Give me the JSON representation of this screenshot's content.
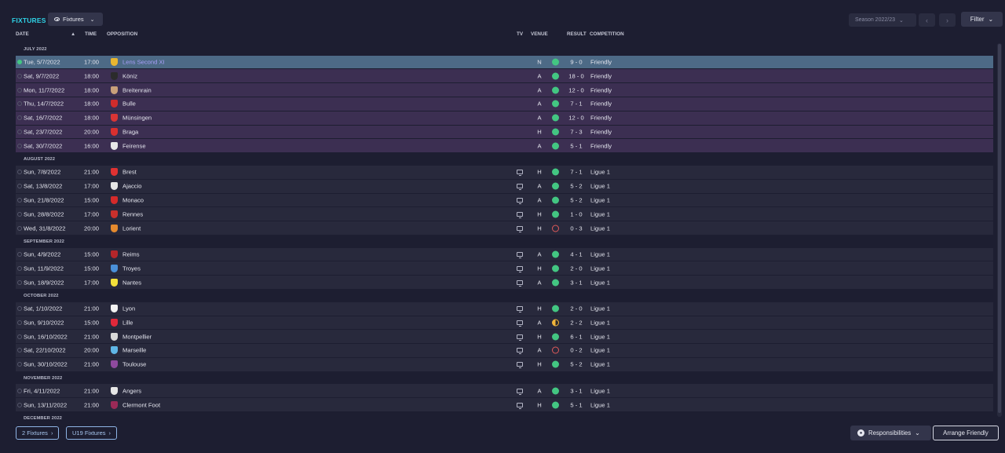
{
  "header": {
    "title": "FIXTURES",
    "view_label": "Fixtures",
    "season_label": "Season 2022/23",
    "filter_label": "Filter",
    "icons": {
      "view": "eye-icon",
      "prev": "chevron-left-icon",
      "next": "chevron-right-icon"
    }
  },
  "columns": {
    "date": "DATE",
    "time": "TIME",
    "opposition": "OPPOSITION",
    "tv": "TV",
    "venue": "VENUE",
    "result": "RESULT",
    "competition": "COMPETITION"
  },
  "months": [
    {
      "label": "JULY 2022",
      "fixtures": [
        {
          "date": "Tue, 5/7/2022",
          "time": "17:00",
          "opposition": "Lens Second XI",
          "tv": false,
          "venue": "N",
          "outcome": "W",
          "result": "9 - 0",
          "competition": "Friendly",
          "friendly": true,
          "selected": true,
          "badge_color": "#e8b630"
        },
        {
          "date": "Sat, 9/7/2022",
          "time": "18:00",
          "opposition": "Köniz",
          "tv": false,
          "venue": "A",
          "outcome": "W",
          "result": "18 - 0",
          "competition": "Friendly",
          "friendly": true,
          "badge_color": "#2b2b2b"
        },
        {
          "date": "Mon, 11/7/2022",
          "time": "18:00",
          "opposition": "Breitenrain",
          "tv": false,
          "venue": "A",
          "outcome": "W",
          "result": "12 - 0",
          "competition": "Friendly",
          "friendly": true,
          "badge_color": "#c8a07a"
        },
        {
          "date": "Thu, 14/7/2022",
          "time": "18:00",
          "opposition": "Bulle",
          "tv": false,
          "venue": "A",
          "outcome": "W",
          "result": "7 - 1",
          "competition": "Friendly",
          "friendly": true,
          "badge_color": "#d02c2c"
        },
        {
          "date": "Sat, 16/7/2022",
          "time": "18:00",
          "opposition": "Münsingen",
          "tv": false,
          "venue": "A",
          "outcome": "W",
          "result": "12 - 0",
          "competition": "Friendly",
          "friendly": true,
          "badge_color": "#d93535"
        },
        {
          "date": "Sat, 23/7/2022",
          "time": "20:00",
          "opposition": "Braga",
          "tv": false,
          "venue": "H",
          "outcome": "W",
          "result": "7 - 3",
          "competition": "Friendly",
          "friendly": true,
          "badge_color": "#d9302f"
        },
        {
          "date": "Sat, 30/7/2022",
          "time": "16:00",
          "opposition": "Feirense",
          "tv": false,
          "venue": "A",
          "outcome": "W",
          "result": "5 - 1",
          "competition": "Friendly",
          "friendly": true,
          "badge_color": "#e7e7e7"
        }
      ]
    },
    {
      "label": "AUGUST 2022",
      "fixtures": [
        {
          "date": "Sun, 7/8/2022",
          "time": "21:00",
          "opposition": "Brest",
          "tv": true,
          "venue": "H",
          "outcome": "W",
          "result": "7 - 1",
          "competition": "Ligue 1",
          "badge_color": "#e03232"
        },
        {
          "date": "Sat, 13/8/2022",
          "time": "17:00",
          "opposition": "Ajaccio",
          "tv": true,
          "venue": "A",
          "outcome": "W",
          "result": "5 - 2",
          "competition": "Ligue 1",
          "badge_color": "#e6e6e6"
        },
        {
          "date": "Sun, 21/8/2022",
          "time": "15:00",
          "opposition": "Monaco",
          "tv": true,
          "venue": "A",
          "outcome": "W",
          "result": "5 - 2",
          "competition": "Ligue 1",
          "badge_color": "#d52a2a"
        },
        {
          "date": "Sun, 28/8/2022",
          "time": "17:00",
          "opposition": "Rennes",
          "tv": true,
          "venue": "H",
          "outcome": "W",
          "result": "1 - 0",
          "competition": "Ligue 1",
          "badge_color": "#c9302c"
        },
        {
          "date": "Wed, 31/8/2022",
          "time": "20:00",
          "opposition": "Lorient",
          "tv": true,
          "venue": "H",
          "outcome": "L",
          "result": "0 - 3",
          "competition": "Ligue 1",
          "badge_color": "#e58a2e"
        }
      ]
    },
    {
      "label": "SEPTEMBER 2022",
      "fixtures": [
        {
          "date": "Sun, 4/9/2022",
          "time": "15:00",
          "opposition": "Reims",
          "tv": true,
          "venue": "A",
          "outcome": "W",
          "result": "4 - 1",
          "competition": "Ligue 1",
          "badge_color": "#b5262a"
        },
        {
          "date": "Sun, 11/9/2022",
          "time": "15:00",
          "opposition": "Troyes",
          "tv": true,
          "venue": "H",
          "outcome": "W",
          "result": "2 - 0",
          "competition": "Ligue 1",
          "badge_color": "#4a90d9"
        },
        {
          "date": "Sun, 18/9/2022",
          "time": "17:00",
          "opposition": "Nantes",
          "tv": true,
          "venue": "A",
          "outcome": "W",
          "result": "3 - 1",
          "competition": "Ligue 1",
          "badge_color": "#f3e03a"
        }
      ]
    },
    {
      "label": "OCTOBER 2022",
      "fixtures": [
        {
          "date": "Sat, 1/10/2022",
          "time": "21:00",
          "opposition": "Lyon",
          "tv": true,
          "venue": "H",
          "outcome": "W",
          "result": "2 - 0",
          "competition": "Ligue 1",
          "badge_color": "#f2f2f2"
        },
        {
          "date": "Sun, 9/10/2022",
          "time": "15:00",
          "opposition": "Lille",
          "tv": true,
          "venue": "A",
          "outcome": "D",
          "result": "2 - 2",
          "competition": "Ligue 1",
          "badge_color": "#e0283a"
        },
        {
          "date": "Sun, 16/10/2022",
          "time": "21:00",
          "opposition": "Montpellier",
          "tv": true,
          "venue": "H",
          "outcome": "W",
          "result": "6 - 1",
          "competition": "Ligue 1",
          "badge_color": "#d8d8d8"
        },
        {
          "date": "Sat, 22/10/2022",
          "time": "20:00",
          "opposition": "Marseille",
          "tv": true,
          "venue": "A",
          "outcome": "L",
          "result": "0 - 2",
          "competition": "Ligue 1",
          "badge_color": "#5fb6e6"
        },
        {
          "date": "Sun, 30/10/2022",
          "time": "21:00",
          "opposition": "Toulouse",
          "tv": true,
          "venue": "H",
          "outcome": "W",
          "result": "5 - 2",
          "competition": "Ligue 1",
          "badge_color": "#8e4a9e"
        }
      ]
    },
    {
      "label": "NOVEMBER 2022",
      "fixtures": [
        {
          "date": "Fri, 4/11/2022",
          "time": "21:00",
          "opposition": "Angers",
          "tv": true,
          "venue": "A",
          "outcome": "W",
          "result": "3 - 1",
          "competition": "Ligue 1",
          "badge_color": "#e6e6e6"
        },
        {
          "date": "Sun, 13/11/2022",
          "time": "21:00",
          "opposition": "Clermont Foot",
          "tv": true,
          "venue": "H",
          "outcome": "W",
          "result": "5 - 1",
          "competition": "Ligue 1",
          "badge_color": "#9b2a57"
        }
      ]
    },
    {
      "label": "DECEMBER 2022",
      "fixtures": []
    }
  ],
  "footer": {
    "fixtures_link": "2 Fixtures",
    "u19_link": "U19 Fixtures",
    "responsibilities_label": "Responsibilities",
    "arrange_label": "Arrange Friendly"
  }
}
